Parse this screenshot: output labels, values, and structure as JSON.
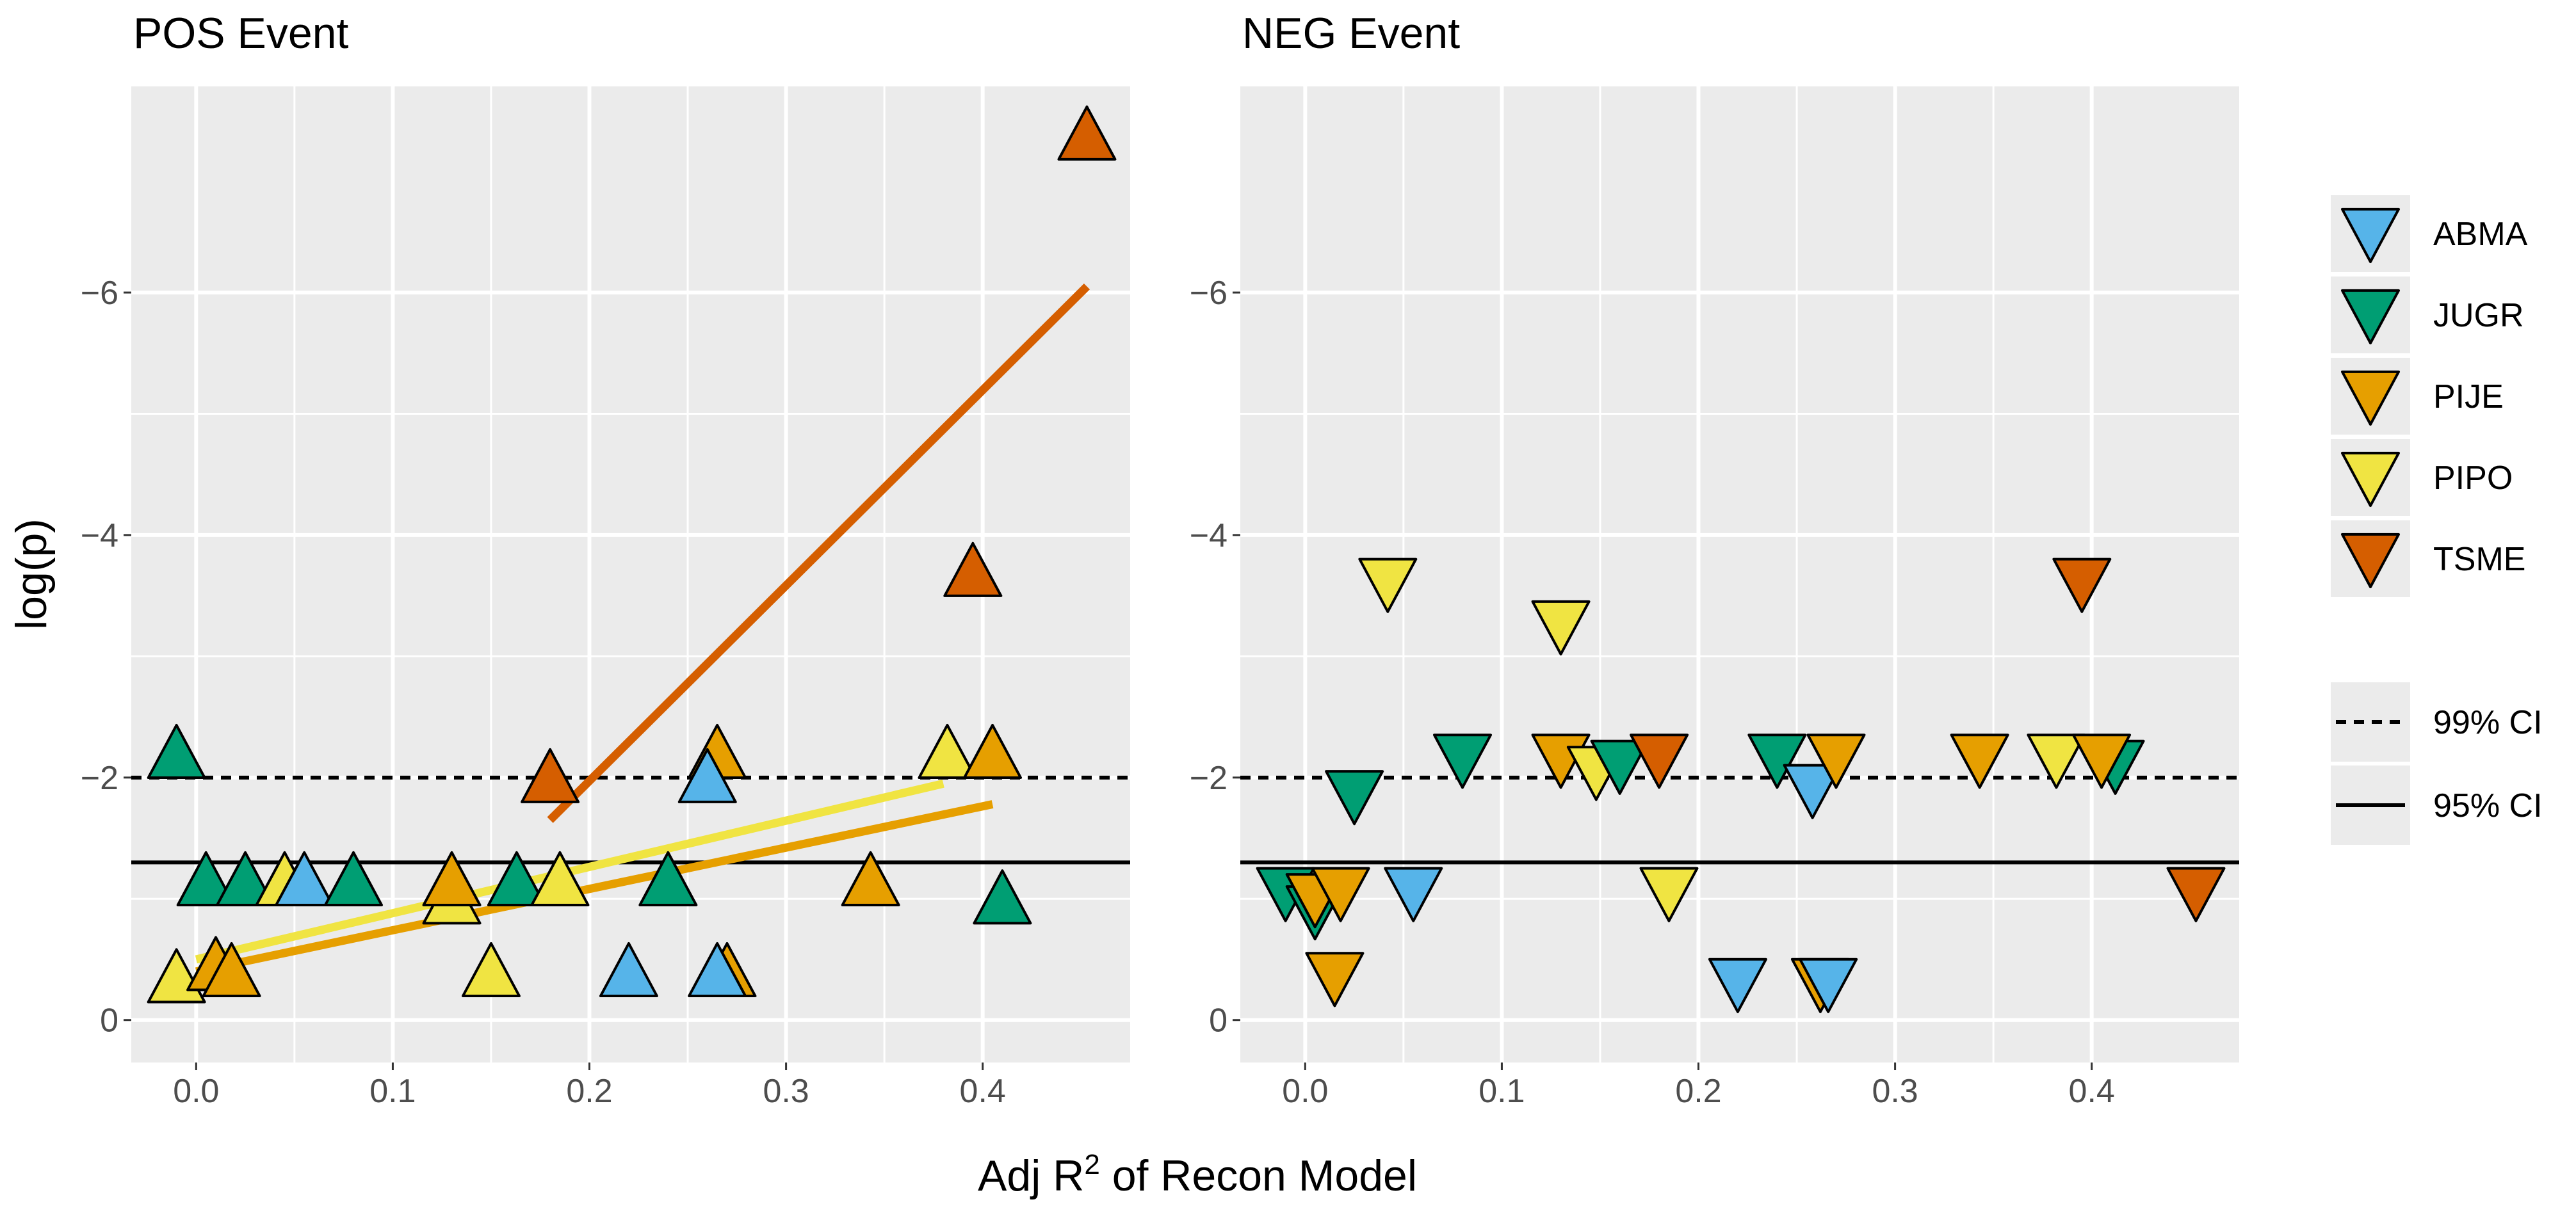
{
  "chart_data": {
    "type": "scatter",
    "xlabel_parts": {
      "pre": "Adj R",
      "sup": "2",
      "post": " of Recon Model"
    },
    "ylabel": "log(p)",
    "xlim": [
      -0.033,
      0.475
    ],
    "ylim": [
      0.35,
      -7.7
    ],
    "x_ticks": [
      0.0,
      0.1,
      0.2,
      0.3,
      0.4
    ],
    "x_tick_labels": [
      "0.0",
      "0.1",
      "0.2",
      "0.3",
      "0.4"
    ],
    "y_ticks": [
      0,
      -2,
      -4,
      -6
    ],
    "y_tick_labels": [
      "0",
      "−2",
      "−4",
      "−6"
    ],
    "colors": {
      "ABMA": "#56B4E9",
      "JUGR": "#009E73",
      "PIJE": "#E69F00",
      "PIPO": "#F0E442",
      "TSME": "#D55E00"
    },
    "reference_lines": [
      {
        "name": "99% CI",
        "y": -2.0,
        "style": "dashed"
      },
      {
        "name": "95% CI",
        "y": -1.3,
        "style": "solid"
      }
    ],
    "panels": [
      {
        "title": "POS Event",
        "marker": "triangle-up",
        "points": [
          {
            "species": "JUGR",
            "x": -0.01,
            "y": -2.2
          },
          {
            "species": "JUGR",
            "x": 0.005,
            "y": -1.15
          },
          {
            "species": "JUGR",
            "x": 0.025,
            "y": -1.15
          },
          {
            "species": "PIPO",
            "x": 0.045,
            "y": -1.15
          },
          {
            "species": "ABMA",
            "x": 0.055,
            "y": -1.15
          },
          {
            "species": "JUGR",
            "x": 0.08,
            "y": -1.15
          },
          {
            "species": "PIPO",
            "x": -0.01,
            "y": -0.35
          },
          {
            "species": "PIJE",
            "x": 0.01,
            "y": -0.45
          },
          {
            "species": "PIJE",
            "x": 0.018,
            "y": -0.4
          },
          {
            "species": "PIPO",
            "x": 0.13,
            "y": -1.0
          },
          {
            "species": "PIJE",
            "x": 0.13,
            "y": -1.15
          },
          {
            "species": "PIPO",
            "x": 0.15,
            "y": -0.4
          },
          {
            "species": "JUGR",
            "x": 0.163,
            "y": -1.15
          },
          {
            "species": "PIPO",
            "x": 0.185,
            "y": -1.15
          },
          {
            "species": "TSME",
            "x": 0.18,
            "y": -2.0
          },
          {
            "species": "ABMA",
            "x": 0.22,
            "y": -0.4
          },
          {
            "species": "JUGR",
            "x": 0.24,
            "y": -1.15
          },
          {
            "species": "PIJE",
            "x": 0.265,
            "y": -2.2
          },
          {
            "species": "ABMA",
            "x": 0.26,
            "y": -2.0
          },
          {
            "species": "PIJE",
            "x": 0.27,
            "y": -0.4
          },
          {
            "species": "ABMA",
            "x": 0.265,
            "y": -0.4
          },
          {
            "species": "PIJE",
            "x": 0.343,
            "y": -1.15
          },
          {
            "species": "PIPO",
            "x": 0.382,
            "y": -2.2
          },
          {
            "species": "PIJE",
            "x": 0.405,
            "y": -2.2
          },
          {
            "species": "TSME",
            "x": 0.395,
            "y": -3.7
          },
          {
            "species": "JUGR",
            "x": 0.41,
            "y": -1.0
          },
          {
            "species": "TSME",
            "x": 0.453,
            "y": -7.3
          }
        ],
        "fit_lines": [
          {
            "species": "TSME",
            "x": [
              0.18,
              0.453
            ],
            "y": [
              -1.65,
              -6.05
            ]
          },
          {
            "species": "PIPO",
            "x": [
              0.0,
              0.38
            ],
            "y": [
              -0.5,
              -1.95
            ]
          },
          {
            "species": "PIJE",
            "x": [
              0.0,
              0.405
            ],
            "y": [
              -0.4,
              -1.78
            ]
          }
        ]
      },
      {
        "title": "NEG Event",
        "marker": "triangle-down",
        "points": [
          {
            "species": "JUGR",
            "x": -0.01,
            "y": -1.05
          },
          {
            "species": "JUGR",
            "x": 0.005,
            "y": -0.9
          },
          {
            "species": "PIJE",
            "x": 0.005,
            "y": -1.0
          },
          {
            "species": "PIJE",
            "x": 0.018,
            "y": -1.05
          },
          {
            "species": "PIJE",
            "x": 0.015,
            "y": -0.35
          },
          {
            "species": "JUGR",
            "x": 0.025,
            "y": -1.85
          },
          {
            "species": "PIPO",
            "x": 0.042,
            "y": -3.6
          },
          {
            "species": "ABMA",
            "x": 0.055,
            "y": -1.05
          },
          {
            "species": "JUGR",
            "x": 0.08,
            "y": -2.15
          },
          {
            "species": "PIPO",
            "x": 0.13,
            "y": -3.25
          },
          {
            "species": "PIJE",
            "x": 0.13,
            "y": -2.15
          },
          {
            "species": "PIPO",
            "x": 0.148,
            "y": -2.05
          },
          {
            "species": "JUGR",
            "x": 0.16,
            "y": -2.1
          },
          {
            "species": "TSME",
            "x": 0.18,
            "y": -2.15
          },
          {
            "species": "PIPO",
            "x": 0.185,
            "y": -1.05
          },
          {
            "species": "ABMA",
            "x": 0.22,
            "y": -0.3
          },
          {
            "species": "JUGR",
            "x": 0.24,
            "y": -2.15
          },
          {
            "species": "ABMA",
            "x": 0.258,
            "y": -1.9
          },
          {
            "species": "PIJE",
            "x": 0.262,
            "y": -0.3
          },
          {
            "species": "ABMA",
            "x": 0.266,
            "y": -0.3
          },
          {
            "species": "PIJE",
            "x": 0.27,
            "y": -2.15
          },
          {
            "species": "PIJE",
            "x": 0.343,
            "y": -2.15
          },
          {
            "species": "PIPO",
            "x": 0.382,
            "y": -2.15
          },
          {
            "species": "JUGR",
            "x": 0.412,
            "y": -2.1
          },
          {
            "species": "PIJE",
            "x": 0.405,
            "y": -2.15
          },
          {
            "species": "TSME",
            "x": 0.395,
            "y": -3.6
          },
          {
            "species": "TSME",
            "x": 0.453,
            "y": -1.05
          }
        ],
        "fit_lines": []
      }
    ],
    "legend": {
      "species": [
        "ABMA",
        "JUGR",
        "PIJE",
        "PIPO",
        "TSME"
      ],
      "lines": [
        {
          "label": "99% CI",
          "style": "dashed"
        },
        {
          "label": "95% CI",
          "style": "solid"
        }
      ]
    }
  }
}
